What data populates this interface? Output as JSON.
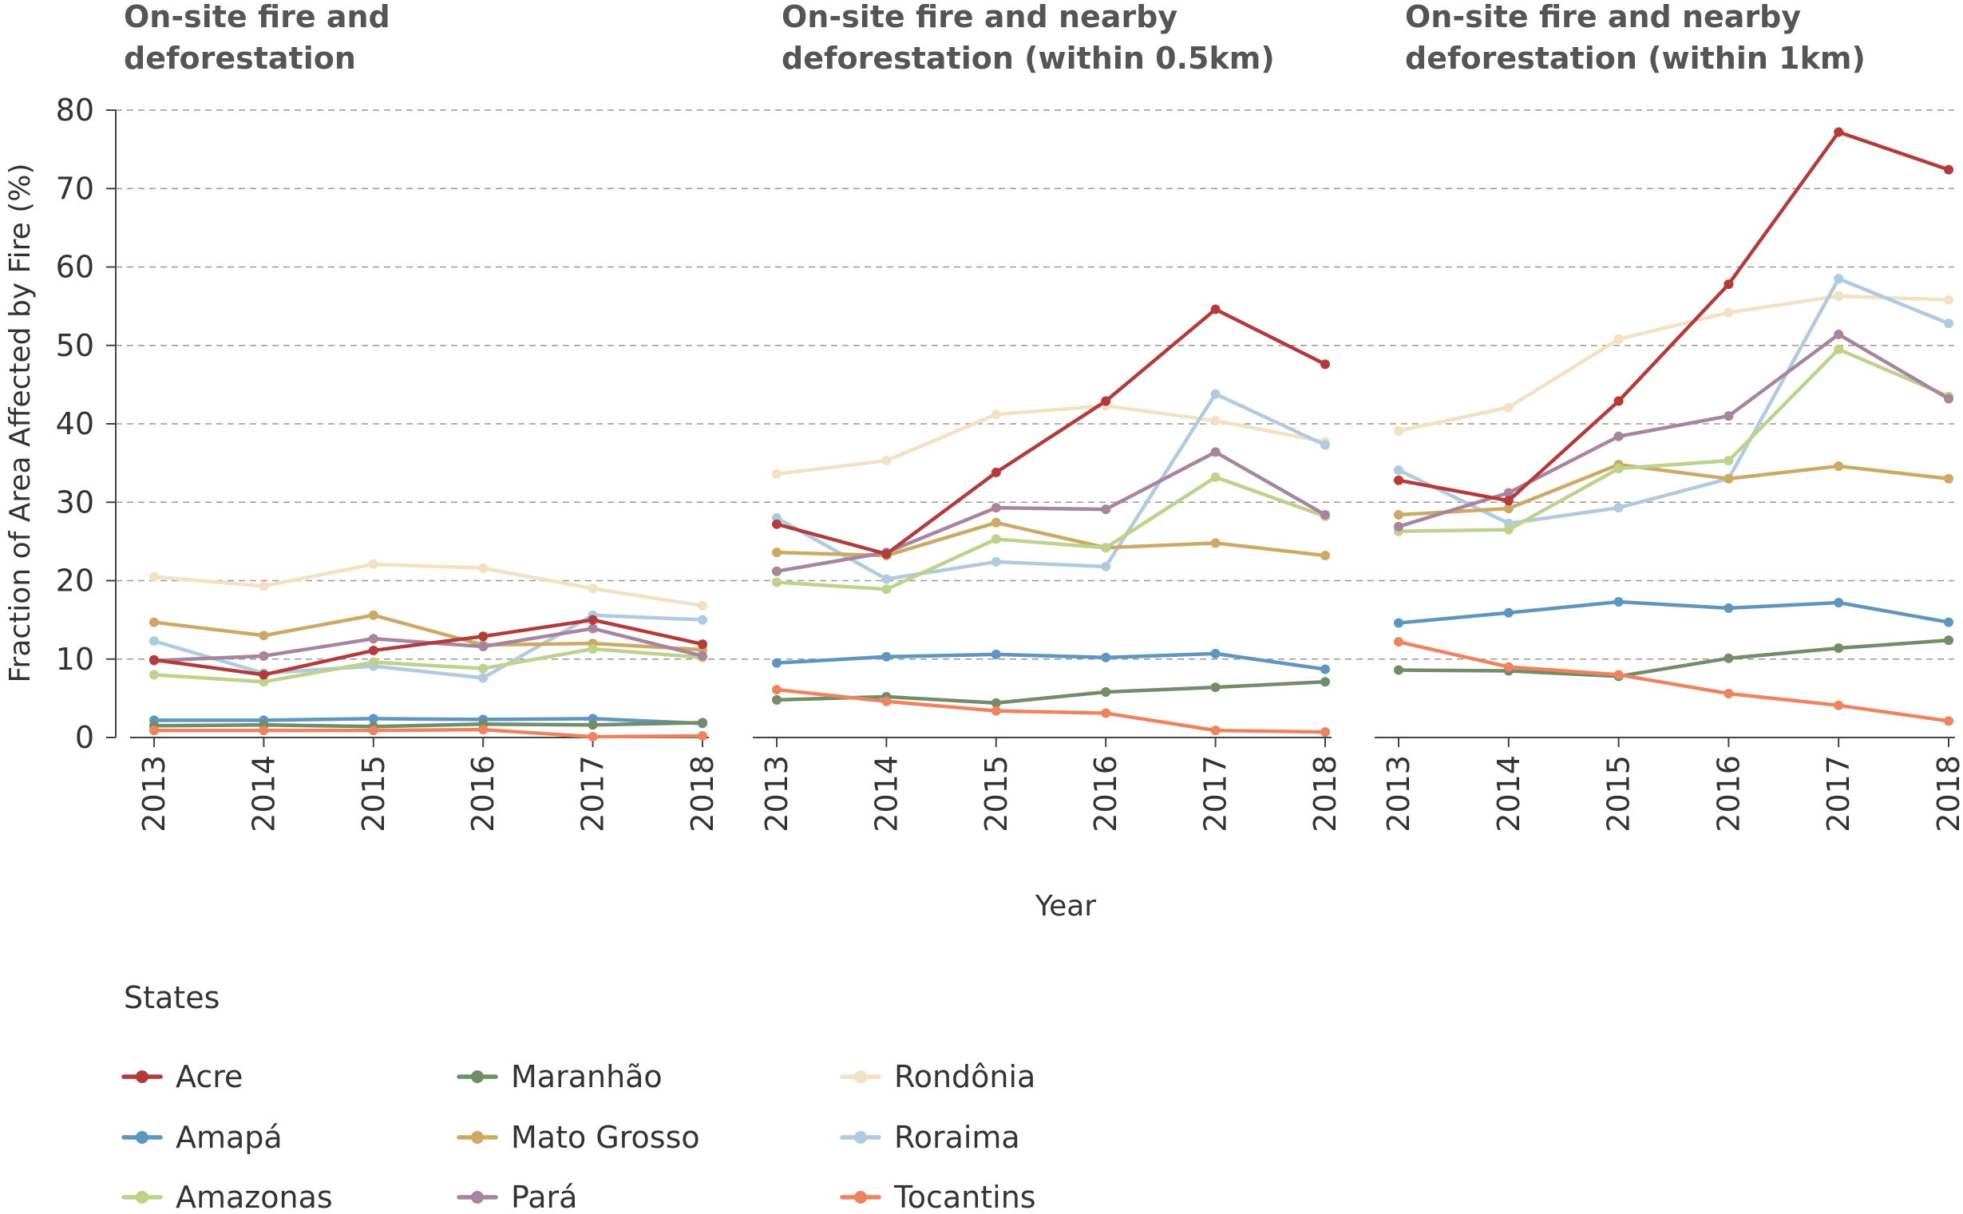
{
  "chart_data": {
    "type": "line",
    "ylabel": "Fraction of Area Affected by Fire (%)",
    "xlabel": "Year",
    "ylim": [
      0,
      80
    ],
    "yticks": [
      0,
      10,
      20,
      30,
      40,
      50,
      60,
      70,
      80
    ],
    "grid": "horizontal dashed",
    "categories": [
      "2013",
      "2014",
      "2015",
      "2016",
      "2017",
      "2018"
    ],
    "legend": {
      "title": "States",
      "placement": "bottom-left"
    },
    "state_colors": {
      "Acre": "#b33c3a",
      "Amapá": "#5f96bf",
      "Amazonas": "#bfd28c",
      "Maranhão": "#728d68",
      "Mato Grosso": "#ccaa66",
      "Pará": "#a8849e",
      "Rondônia": "#f2e1c2",
      "Roraima": "#aecbe0",
      "Tocantins": "#ec8460"
    },
    "legend_order": [
      "Acre",
      "Amapá",
      "Amazonas",
      "Maranhão",
      "Mato Grosso",
      "Pará",
      "Rondônia",
      "Roraima",
      "Tocantins"
    ],
    "panels": [
      {
        "title_lines": [
          "On-site fire and",
          "deforestation"
        ],
        "series": [
          {
            "name": "Rondônia",
            "values": [
              20.5,
              19.3,
              22.1,
              21.6,
              19.0,
              16.8
            ]
          },
          {
            "name": "Roraima",
            "values": [
              12.3,
              8.2,
              9.1,
              7.6,
              15.6,
              15.0
            ]
          },
          {
            "name": "Mato Grosso",
            "values": [
              14.7,
              13.0,
              15.6,
              11.8,
              12.0,
              11.2
            ]
          },
          {
            "name": "Amazonas",
            "values": [
              8.0,
              7.1,
              9.6,
              8.8,
              11.3,
              10.2
            ]
          },
          {
            "name": "Pará",
            "values": [
              9.8,
              10.4,
              12.6,
              11.6,
              13.9,
              10.4
            ]
          },
          {
            "name": "Acre",
            "values": [
              9.9,
              8.0,
              11.1,
              12.9,
              15.0,
              11.9
            ]
          },
          {
            "name": "Amapá",
            "values": [
              2.2,
              2.2,
              2.4,
              2.3,
              2.4,
              1.8
            ]
          },
          {
            "name": "Maranhão",
            "values": [
              1.5,
              1.6,
              1.4,
              1.7,
              1.6,
              1.9
            ]
          },
          {
            "name": "Tocantins",
            "values": [
              0.9,
              0.9,
              0.9,
              1.0,
              0.1,
              0.2
            ]
          }
        ]
      },
      {
        "title_lines": [
          "On-site fire and nearby",
          "deforestation (within 0.5km)"
        ],
        "series": [
          {
            "name": "Rondônia",
            "values": [
              33.6,
              35.3,
              41.2,
              42.3,
              40.4,
              37.7
            ]
          },
          {
            "name": "Roraima",
            "values": [
              28.0,
              20.2,
              22.4,
              21.8,
              43.8,
              37.3
            ]
          },
          {
            "name": "Mato Grosso",
            "values": [
              23.6,
              23.2,
              27.4,
              24.2,
              24.8,
              23.2
            ]
          },
          {
            "name": "Amazonas",
            "values": [
              19.8,
              18.9,
              25.3,
              24.2,
              33.2,
              28.2
            ]
          },
          {
            "name": "Pará",
            "values": [
              21.2,
              23.6,
              29.3,
              29.1,
              36.4,
              28.4
            ]
          },
          {
            "name": "Acre",
            "values": [
              27.2,
              23.4,
              33.8,
              42.9,
              54.6,
              47.6
            ]
          },
          {
            "name": "Amapá",
            "values": [
              9.5,
              10.3,
              10.6,
              10.2,
              10.7,
              8.7
            ]
          },
          {
            "name": "Maranhão",
            "values": [
              4.8,
              5.2,
              4.4,
              5.8,
              6.4,
              7.1
            ]
          },
          {
            "name": "Tocantins",
            "values": [
              6.1,
              4.6,
              3.4,
              3.1,
              0.9,
              0.7
            ]
          }
        ]
      },
      {
        "title_lines": [
          "On-site fire and nearby",
          "deforestation (within 1km)"
        ],
        "series": [
          {
            "name": "Rondônia",
            "values": [
              39.1,
              42.1,
              50.8,
              54.2,
              56.3,
              55.8
            ]
          },
          {
            "name": "Roraima",
            "values": [
              34.1,
              27.3,
              29.3,
              33.0,
              58.5,
              52.8
            ]
          },
          {
            "name": "Mato Grosso",
            "values": [
              28.4,
              29.2,
              34.8,
              33.0,
              34.6,
              33.0
            ]
          },
          {
            "name": "Amazonas",
            "values": [
              26.3,
              26.5,
              34.3,
              35.3,
              49.5,
              43.5
            ]
          },
          {
            "name": "Pará",
            "values": [
              26.9,
              31.2,
              38.4,
              41.0,
              51.4,
              43.2
            ]
          },
          {
            "name": "Acre",
            "values": [
              32.8,
              30.2,
              42.9,
              57.8,
              77.2,
              72.4
            ]
          },
          {
            "name": "Amapá",
            "values": [
              14.6,
              15.9,
              17.3,
              16.5,
              17.2,
              14.7
            ]
          },
          {
            "name": "Maranhão",
            "values": [
              8.6,
              8.5,
              7.8,
              10.1,
              11.4,
              12.4
            ]
          },
          {
            "name": "Tocantins",
            "values": [
              12.2,
              9.0,
              8.0,
              5.6,
              4.1,
              2.1
            ]
          }
        ]
      }
    ]
  }
}
